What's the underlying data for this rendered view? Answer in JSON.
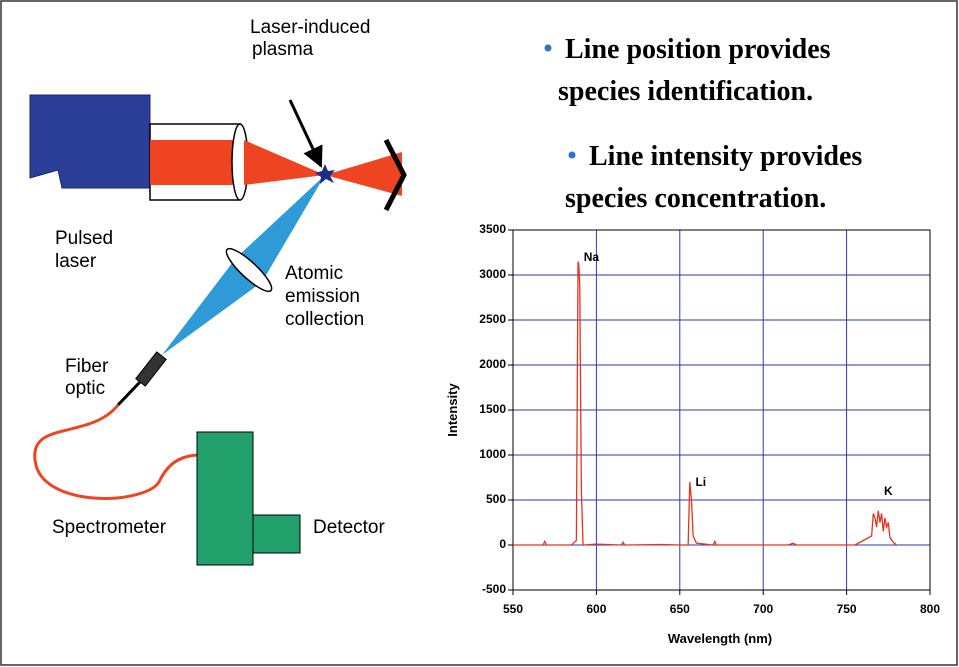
{
  "diagram": {
    "plasma_label": [
      "Laser-induced",
      "plasma"
    ],
    "laser_label": [
      "Pulsed",
      "laser"
    ],
    "collection_label": [
      "Atomic",
      "emission",
      "collection"
    ],
    "fiber_label": [
      "Fiber",
      "optic"
    ],
    "spectrometer_label": "Spectrometer",
    "detector_label": "Detector"
  },
  "bullets": [
    [
      "Line position provides",
      "species identification."
    ],
    [
      "Line intensity provides",
      "species concentration."
    ]
  ],
  "chart_data": {
    "type": "line",
    "x_label": "Wavelength (nm)",
    "y_label": "Intensity",
    "x": [
      550,
      568,
      569,
      570,
      585,
      588,
      589,
      589.5,
      590,
      591,
      592,
      600,
      615,
      616,
      617,
      640,
      650,
      655,
      656,
      657,
      658,
      660,
      670,
      671,
      672,
      690,
      705,
      715,
      718,
      720,
      740,
      755,
      760,
      765,
      766,
      767,
      768,
      769,
      770,
      771,
      772,
      773,
      774,
      775,
      776,
      778,
      780
    ],
    "series": [
      {
        "color": "#e8321e",
        "values": [
          0,
          0,
          40,
          0,
          0,
          50,
          3150,
          3100,
          2900,
          600,
          0,
          10,
          0,
          30,
          0,
          5,
          0,
          0,
          700,
          500,
          100,
          20,
          0,
          40,
          0,
          0,
          0,
          0,
          20,
          0,
          0,
          0,
          50,
          100,
          350,
          300,
          200,
          380,
          250,
          350,
          150,
          300,
          200,
          250,
          80,
          30,
          0
        ]
      }
    ],
    "xlim": [
      550,
      800
    ],
    "ylim": [
      -500,
      3500
    ],
    "xticks": [
      550,
      600,
      650,
      700,
      750,
      800
    ],
    "yticks": [
      -500,
      0,
      500,
      1000,
      1500,
      2000,
      2500,
      3000,
      3500
    ],
    "grid": true,
    "grid_color": "#2a3aa8",
    "annotations": [
      {
        "text": "Na",
        "x": 590,
        "y": 3100
      },
      {
        "text": "Li",
        "x": 657,
        "y": 600
      },
      {
        "text": "K",
        "x": 770,
        "y": 500
      }
    ]
  }
}
